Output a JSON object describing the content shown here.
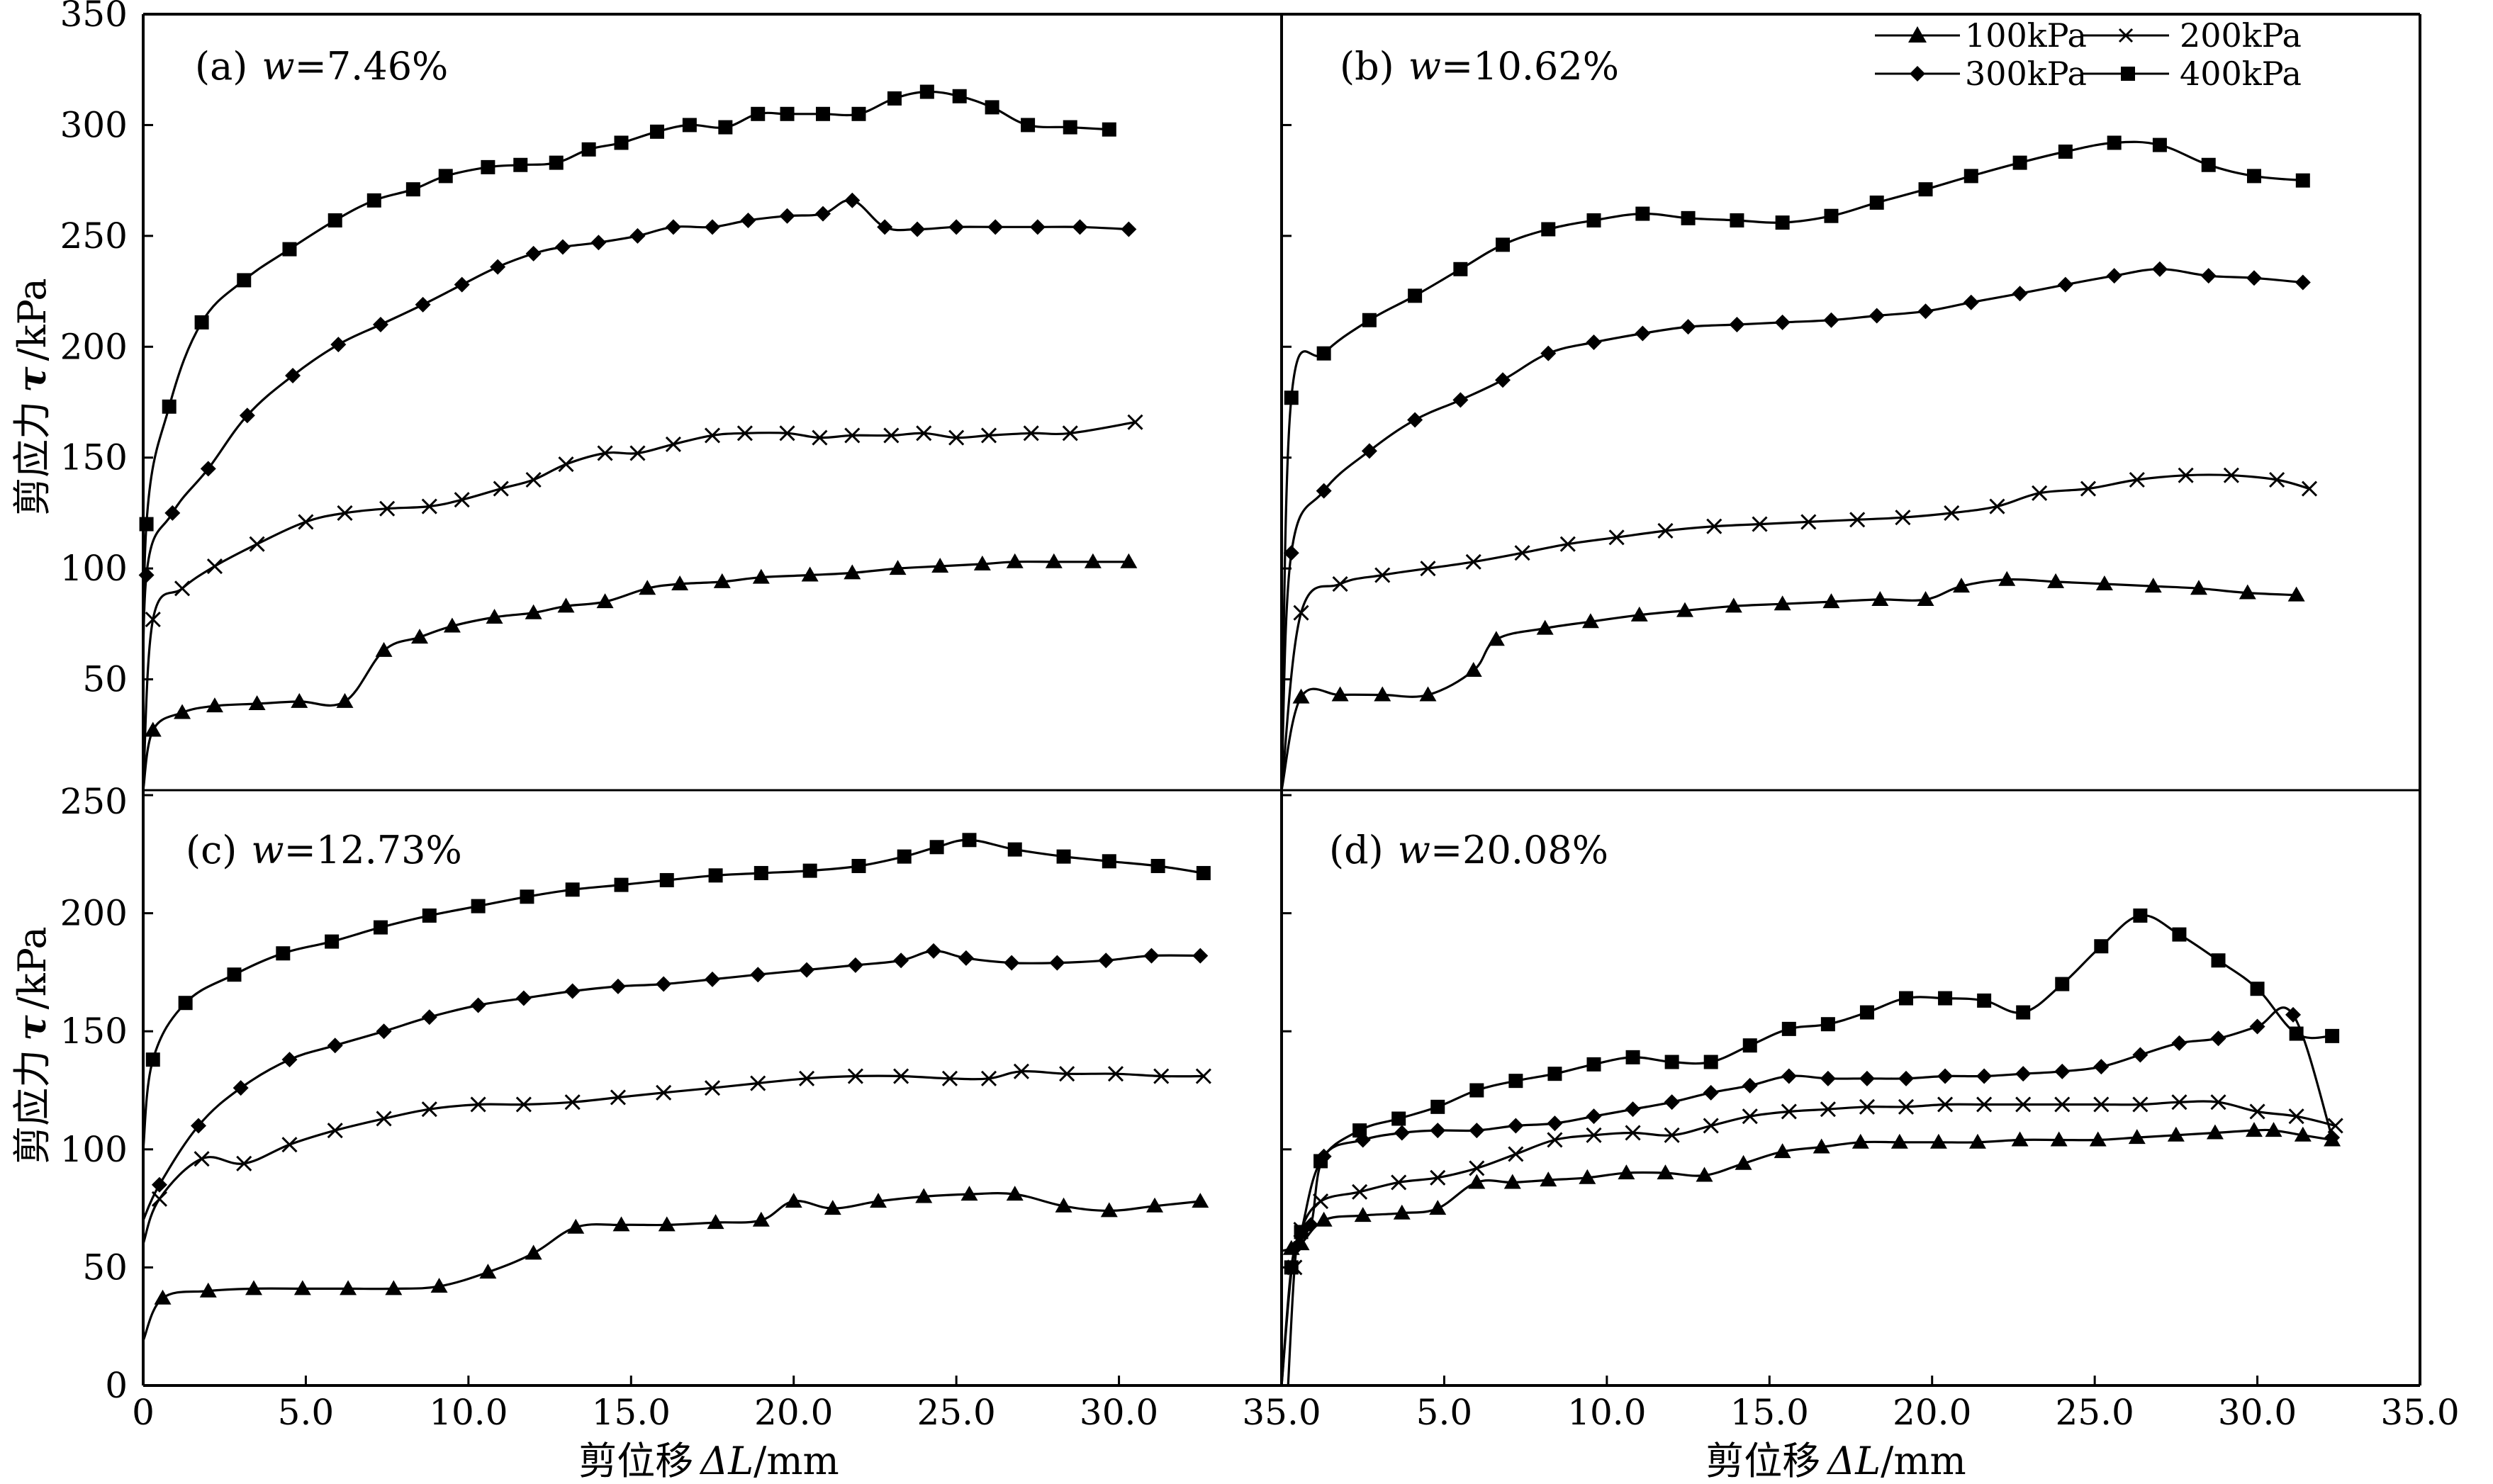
{
  "legend": {
    "entries": [
      {
        "label": "100kPa",
        "marker": "triangle"
      },
      {
        "label": "200kPa",
        "marker": "x"
      },
      {
        "label": "300kPa",
        "marker": "diamond"
      },
      {
        "label": "400kPa",
        "marker": "square"
      }
    ]
  },
  "y_title": {
    "text": "剪应力",
    "symbol": "τ",
    "unit": "/kPa"
  },
  "x_title": {
    "text": "剪位移",
    "symbol": "ΔL",
    "unit": "/mm"
  },
  "x_tick_labels_left": [
    "0",
    "5.0",
    "10.0",
    "15.0",
    "20.0",
    "25.0",
    "30.0",
    "35.0"
  ],
  "x_tick_labels_right": [
    "5.0",
    "10.0",
    "15.0",
    "20.0",
    "25.0",
    "30.0",
    "35.0"
  ],
  "y_tick_labels_top": [
    "50",
    "100",
    "150",
    "200",
    "250",
    "300",
    "350"
  ],
  "y_tick_labels_bottom": [
    "0",
    "50",
    "100",
    "150",
    "200",
    "250"
  ],
  "colors": {
    "line": "#000000",
    "background": "#ffffff"
  },
  "chart_data": [
    {
      "type": "line",
      "panel_label": {
        "prefix": "(a)",
        "var": "w",
        "value": "=7.46%"
      },
      "xlim": [
        0,
        35
      ],
      "ylim": [
        0,
        350
      ],
      "grid": false,
      "legend": "top-right",
      "series": [
        {
          "name": "100kPa",
          "marker": "triangle",
          "x": [
            0,
            0.3,
            1.2,
            2.2,
            3.5,
            4.8,
            6.2,
            7.4,
            8.5,
            9.5,
            10.8,
            12.0,
            13.0,
            14.2,
            15.5,
            16.5,
            17.8,
            19.0,
            20.5,
            21.8,
            23.2,
            24.5,
            25.8,
            26.8,
            28.0,
            29.2,
            30.3
          ],
          "y": [
            0,
            27,
            35,
            38,
            39,
            40,
            40,
            63,
            69,
            74,
            78,
            80,
            83,
            85,
            91,
            93,
            94,
            96,
            97,
            98,
            100,
            101,
            102,
            103,
            103,
            103,
            103
          ]
        },
        {
          "name": "200kPa",
          "marker": "x",
          "x": [
            0,
            0.3,
            1.2,
            2.2,
            3.5,
            5.0,
            6.2,
            7.5,
            8.8,
            9.8,
            11.0,
            12.0,
            13.0,
            14.2,
            15.2,
            16.3,
            17.5,
            18.5,
            19.8,
            20.8,
            21.8,
            23.0,
            24.0,
            25.0,
            26.0,
            27.3,
            28.5,
            30.5
          ],
          "y": [
            0,
            77,
            91,
            101,
            111,
            121,
            125,
            127,
            128,
            131,
            136,
            140,
            147,
            152,
            152,
            156,
            160,
            161,
            161,
            159,
            160,
            160,
            161,
            159,
            160,
            161,
            161,
            166
          ]
        },
        {
          "name": "300kPa",
          "marker": "diamond",
          "x": [
            0,
            0.1,
            0.9,
            2.0,
            3.2,
            4.6,
            6.0,
            7.3,
            8.6,
            9.8,
            10.9,
            12.0,
            12.9,
            14.0,
            15.2,
            16.3,
            17.5,
            18.6,
            19.8,
            20.9,
            21.8,
            22.8,
            23.8,
            25.0,
            26.2,
            27.5,
            28.8,
            30.3
          ],
          "y": [
            0,
            97,
            125,
            145,
            169,
            187,
            201,
            210,
            219,
            228,
            236,
            242,
            245,
            247,
            250,
            254,
            254,
            257,
            259,
            260,
            266,
            254,
            253,
            254,
            254,
            254,
            254,
            253
          ]
        },
        {
          "name": "400kPa",
          "marker": "square",
          "x": [
            0,
            0.1,
            0.8,
            1.8,
            3.1,
            4.5,
            5.9,
            7.1,
            8.3,
            9.3,
            10.6,
            11.6,
            12.7,
            13.7,
            14.7,
            15.8,
            16.8,
            17.9,
            18.9,
            19.8,
            20.9,
            22.0,
            23.1,
            24.1,
            25.1,
            26.1,
            27.2,
            28.5,
            29.7
          ],
          "y": [
            0,
            120,
            173,
            211,
            230,
            244,
            257,
            266,
            271,
            277,
            281,
            282,
            283,
            289,
            292,
            297,
            300,
            299,
            305,
            305,
            305,
            305,
            312,
            315,
            313,
            308,
            300,
            299,
            298
          ]
        }
      ]
    },
    {
      "type": "line",
      "panel_label": {
        "prefix": "(b)",
        "var": "w",
        "value": "=10.62%"
      },
      "xlim": [
        0,
        35
      ],
      "ylim": [
        0,
        350
      ],
      "grid": false,
      "legend": "top-right",
      "series": [
        {
          "name": "100kPa",
          "marker": "triangle",
          "x": [
            0,
            0.6,
            1.8,
            3.1,
            4.5,
            5.9,
            6.6,
            8.1,
            9.5,
            11.0,
            12.4,
            13.9,
            15.4,
            16.9,
            18.4,
            19.8,
            20.9,
            22.3,
            23.8,
            25.3,
            26.8,
            28.2,
            29.7,
            31.2
          ],
          "y": [
            0,
            42,
            43,
            43,
            43,
            54,
            68,
            73,
            76,
            79,
            81,
            83,
            84,
            85,
            86,
            86,
            92,
            95,
            94,
            93,
            92,
            91,
            89,
            88
          ]
        },
        {
          "name": "200kPa",
          "marker": "x",
          "x": [
            0,
            0.6,
            1.8,
            3.1,
            4.5,
            5.9,
            7.4,
            8.8,
            10.3,
            11.8,
            13.3,
            14.7,
            16.2,
            17.7,
            19.1,
            20.6,
            22.0,
            23.3,
            24.8,
            26.3,
            27.8,
            29.2,
            30.6,
            31.6
          ],
          "y": [
            0,
            80,
            93,
            97,
            100,
            103,
            107,
            111,
            114,
            117,
            119,
            120,
            121,
            122,
            123,
            125,
            128,
            134,
            136,
            140,
            142,
            142,
            140,
            136
          ]
        },
        {
          "name": "300kPa",
          "marker": "diamond",
          "x": [
            0,
            0.3,
            1.3,
            2.7,
            4.1,
            5.5,
            6.8,
            8.2,
            9.6,
            11.1,
            12.5,
            14.0,
            15.4,
            16.9,
            18.3,
            19.8,
            21.2,
            22.7,
            24.1,
            25.6,
            27.0,
            28.5,
            29.9,
            31.4
          ],
          "y": [
            0,
            107,
            135,
            153,
            167,
            176,
            185,
            197,
            202,
            206,
            209,
            210,
            211,
            212,
            214,
            216,
            220,
            224,
            228,
            232,
            235,
            232,
            231,
            229
          ]
        },
        {
          "name": "400kPa",
          "marker": "square",
          "x": [
            0,
            0.3,
            1.3,
            2.7,
            4.1,
            5.5,
            6.8,
            8.2,
            9.6,
            11.1,
            12.5,
            14.0,
            15.4,
            16.9,
            18.3,
            19.8,
            21.2,
            22.7,
            24.1,
            25.6,
            27.0,
            28.5,
            29.9,
            31.4
          ],
          "y": [
            0,
            177,
            197,
            212,
            223,
            235,
            246,
            253,
            257,
            260,
            258,
            257,
            256,
            259,
            265,
            271,
            277,
            283,
            288,
            292,
            291,
            282,
            277,
            275
          ]
        }
      ]
    },
    {
      "type": "line",
      "panel_label": {
        "prefix": "(c)",
        "var": "w",
        "value": "=12.73%"
      },
      "xlim": [
        0,
        35
      ],
      "ylim": [
        0,
        250
      ],
      "grid": false,
      "legend": "none",
      "series": [
        {
          "name": "100kPa",
          "marker": "triangle",
          "x": [
            0,
            0.6,
            2.0,
            3.4,
            4.9,
            6.3,
            7.7,
            9.1,
            10.6,
            12.0,
            13.3,
            14.7,
            16.1,
            17.6,
            19.0,
            20.0,
            21.2,
            22.6,
            24.0,
            25.4,
            26.8,
            28.3,
            29.7,
            31.1,
            32.5
          ],
          "y": [
            19,
            37,
            40,
            41,
            41,
            41,
            41,
            42,
            48,
            56,
            67,
            68,
            68,
            69,
            70,
            78,
            75,
            78,
            80,
            81,
            81,
            76,
            74,
            76,
            78
          ]
        },
        {
          "name": "200kPa",
          "marker": "x",
          "x": [
            0,
            0.5,
            1.8,
            3.1,
            4.5,
            5.9,
            7.4,
            8.8,
            10.3,
            11.7,
            13.2,
            14.6,
            16.0,
            17.5,
            18.9,
            20.4,
            21.9,
            23.3,
            24.8,
            26.0,
            27.0,
            28.4,
            29.9,
            31.3,
            32.6
          ],
          "y": [
            60,
            79,
            96,
            94,
            102,
            108,
            113,
            117,
            119,
            119,
            120,
            122,
            124,
            126,
            128,
            130,
            131,
            131,
            130,
            130,
            133,
            132,
            132,
            131,
            131
          ]
        },
        {
          "name": "300kPa",
          "marker": "diamond",
          "x": [
            0,
            0.5,
            1.7,
            3.0,
            4.5,
            5.9,
            7.4,
            8.8,
            10.3,
            11.7,
            13.2,
            14.6,
            16.0,
            17.5,
            18.9,
            20.4,
            21.9,
            23.3,
            24.3,
            25.3,
            26.7,
            28.1,
            29.6,
            31.0,
            32.5
          ],
          "y": [
            70,
            85,
            110,
            126,
            138,
            144,
            150,
            156,
            161,
            164,
            167,
            169,
            170,
            172,
            174,
            176,
            178,
            180,
            184,
            181,
            179,
            179,
            180,
            182,
            182
          ]
        },
        {
          "name": "400kPa",
          "marker": "square",
          "x": [
            0,
            0.3,
            1.3,
            2.8,
            4.3,
            5.8,
            7.3,
            8.8,
            10.3,
            11.8,
            13.2,
            14.7,
            16.1,
            17.6,
            19.0,
            20.5,
            22.0,
            23.4,
            24.4,
            25.4,
            26.8,
            28.3,
            29.7,
            31.2,
            32.6
          ],
          "y": [
            100,
            138,
            162,
            174,
            183,
            188,
            194,
            199,
            203,
            207,
            210,
            212,
            214,
            216,
            217,
            218,
            220,
            224,
            228,
            231,
            227,
            224,
            222,
            220,
            217
          ]
        }
      ]
    },
    {
      "type": "line",
      "panel_label": {
        "prefix": "(d)",
        "var": "w",
        "value": "=20.08%"
      },
      "xlim": [
        0,
        35
      ],
      "ylim": [
        0,
        250
      ],
      "grid": false,
      "legend": "none",
      "series": [
        {
          "name": "100kPa",
          "marker": "triangle",
          "x": [
            0,
            0.3,
            0.6,
            1.3,
            2.5,
            3.7,
            4.8,
            6.0,
            7.1,
            8.2,
            9.4,
            10.6,
            11.8,
            13.0,
            14.2,
            15.4,
            16.6,
            17.8,
            19.0,
            20.2,
            21.4,
            22.7,
            23.9,
            25.1,
            26.3,
            27.5,
            28.7,
            29.9,
            30.5,
            31.4,
            32.3
          ],
          "y": [
            57,
            58,
            60,
            70,
            72,
            73,
            75,
            86,
            86,
            87,
            88,
            90,
            90,
            89,
            94,
            99,
            101,
            103,
            103,
            103,
            103,
            104,
            104,
            104,
            105,
            106,
            107,
            108,
            108,
            106,
            104
          ]
        },
        {
          "name": "200kPa",
          "marker": "x",
          "x": [
            0.2,
            0.4,
            0.6,
            1.2,
            2.4,
            3.6,
            4.8,
            6.0,
            7.2,
            8.4,
            9.6,
            10.8,
            12.0,
            13.2,
            14.4,
            15.6,
            16.8,
            18.0,
            19.2,
            20.4,
            21.6,
            22.8,
            24.0,
            25.2,
            26.4,
            27.6,
            28.8,
            30.0,
            31.2,
            32.4
          ],
          "y": [
            0,
            50,
            66,
            78,
            82,
            86,
            88,
            92,
            98,
            104,
            106,
            107,
            106,
            110,
            114,
            116,
            117,
            118,
            118,
            119,
            119,
            119,
            119,
            119,
            119,
            120,
            120,
            116,
            114,
            110
          ]
        },
        {
          "name": "300kPa",
          "marker": "diamond",
          "x": [
            0,
            0.4,
            0.9,
            1.3,
            2.5,
            3.7,
            4.8,
            6.0,
            7.2,
            8.4,
            9.6,
            10.8,
            12.0,
            13.2,
            14.4,
            15.6,
            16.8,
            18.0,
            19.2,
            20.4,
            21.6,
            22.8,
            24.0,
            25.2,
            26.4,
            27.6,
            28.8,
            30.0,
            31.1,
            32.3
          ],
          "y": [
            0,
            58,
            68,
            97,
            104,
            107,
            108,
            108,
            110,
            111,
            114,
            117,
            120,
            124,
            127,
            131,
            130,
            130,
            130,
            131,
            131,
            132,
            133,
            135,
            140,
            145,
            147,
            152,
            157,
            105
          ]
        },
        {
          "name": "400kPa",
          "marker": "square",
          "x": [
            0,
            0.3,
            0.6,
            1.2,
            2.4,
            3.6,
            4.8,
            6.0,
            7.2,
            8.4,
            9.6,
            10.8,
            12.0,
            13.2,
            14.4,
            15.6,
            16.8,
            18.0,
            19.2,
            20.4,
            21.6,
            22.8,
            24.0,
            25.2,
            26.4,
            27.6,
            28.8,
            30.0,
            31.2,
            32.3
          ],
          "y": [
            0,
            50,
            65,
            95,
            108,
            113,
            118,
            125,
            129,
            132,
            136,
            139,
            137,
            137,
            144,
            151,
            153,
            158,
            164,
            164,
            163,
            158,
            170,
            186,
            199,
            191,
            180,
            168,
            149,
            148
          ]
        }
      ]
    }
  ]
}
